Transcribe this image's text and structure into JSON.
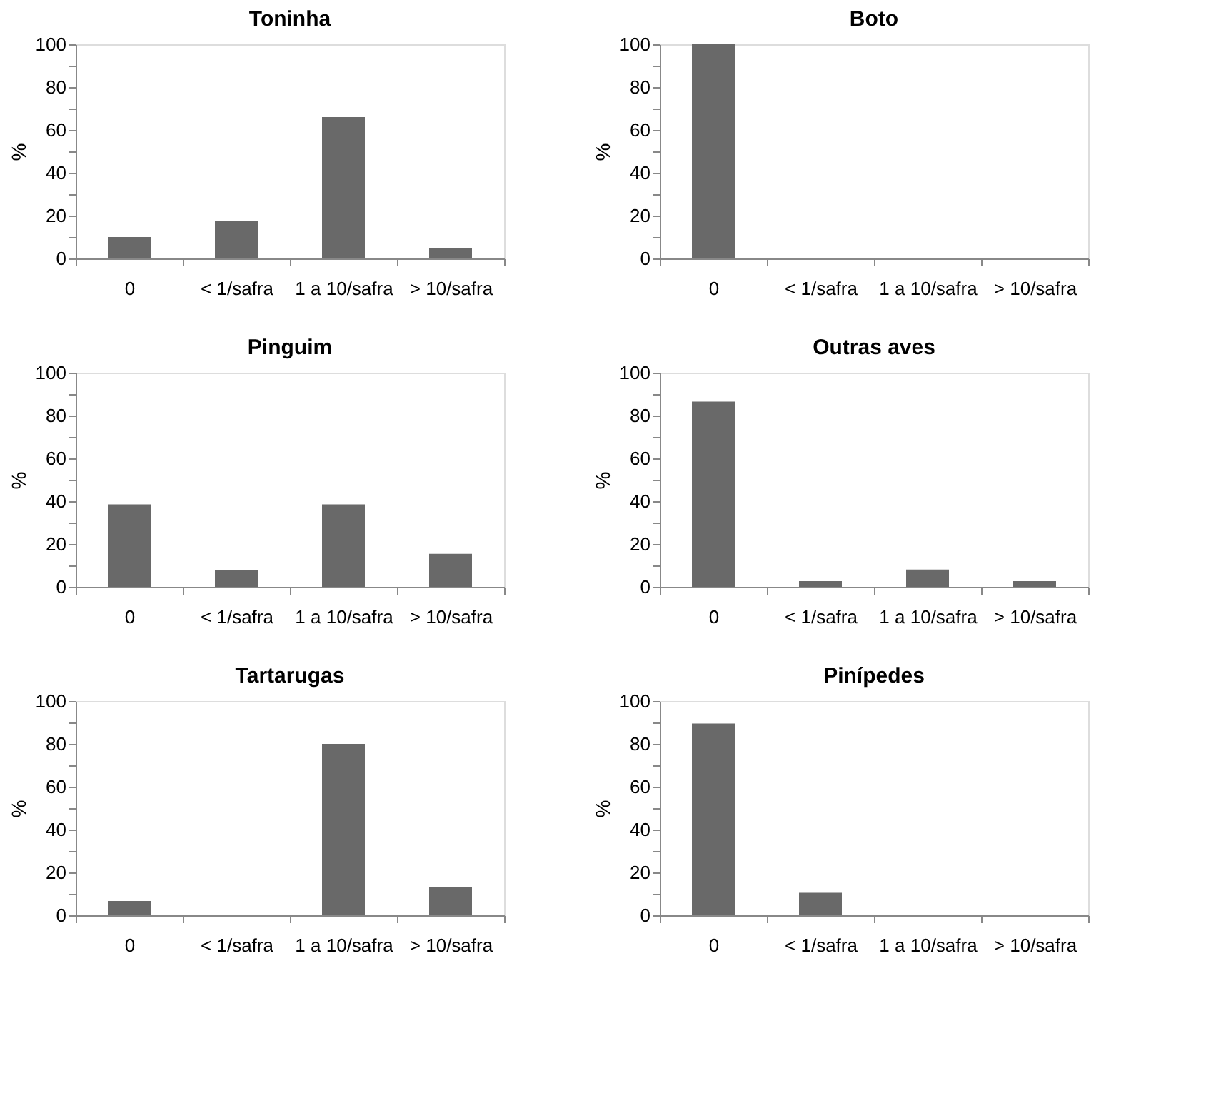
{
  "chart_data": [
    {
      "type": "bar",
      "title": "Toninha",
      "ylabel": "%",
      "categories": [
        "0",
        "< 1/safra",
        "1 a 10/safra",
        "> 10/safra"
      ],
      "values": [
        10,
        17.5,
        66,
        5
      ],
      "color": "#696969",
      "ylim": [
        0,
        100
      ],
      "yticks": [
        0,
        {
          "value": 10,
          "label": null
        },
        20,
        {
          "value": 30,
          "label": null
        },
        40,
        {
          "value": 50,
          "label": null
        },
        60,
        {
          "value": 70,
          "label": null
        },
        80,
        {
          "value": 90,
          "label": null
        },
        100
      ],
      "grid": false
    },
    {
      "type": "bar",
      "title": "Boto",
      "ylabel": "%",
      "categories": [
        "0",
        "< 1/safra",
        "1 a 10/safra",
        "> 10/safra"
      ],
      "values": [
        100,
        0,
        0,
        0
      ],
      "color": "#696969",
      "ylim": [
        0,
        100
      ],
      "yticks": [
        0,
        {
          "value": 10,
          "label": null
        },
        20,
        {
          "value": 30,
          "label": null
        },
        40,
        {
          "value": 50,
          "label": null
        },
        60,
        {
          "value": 70,
          "label": null
        },
        80,
        {
          "value": 90,
          "label": null
        },
        100
      ],
      "grid": false
    },
    {
      "type": "bar",
      "title": "Pinguim",
      "ylabel": "%",
      "categories": [
        "0",
        "< 1/safra",
        "1 a 10/safra",
        "> 10/safra"
      ],
      "values": [
        38.5,
        7.7,
        38.5,
        15.4
      ],
      "color": "#696969",
      "ylim": [
        0,
        100
      ],
      "yticks": [
        0,
        {
          "value": 10,
          "label": null
        },
        20,
        {
          "value": 30,
          "label": null
        },
        40,
        {
          "value": 50,
          "label": null
        },
        60,
        {
          "value": 70,
          "label": null
        },
        80,
        {
          "value": 90,
          "label": null
        },
        100
      ],
      "grid": false
    },
    {
      "type": "bar",
      "title": "Outras aves",
      "ylabel": "%",
      "categories": [
        "0",
        "< 1/safra",
        "1 a 10/safra",
        "> 10/safra"
      ],
      "values": [
        86.5,
        2.7,
        8.1,
        2.7
      ],
      "color": "#696969",
      "ylim": [
        0,
        100
      ],
      "yticks": [
        0,
        {
          "value": 10,
          "label": null
        },
        20,
        {
          "value": 30,
          "label": null
        },
        40,
        {
          "value": 50,
          "label": null
        },
        60,
        {
          "value": 70,
          "label": null
        },
        80,
        {
          "value": 90,
          "label": null
        },
        100
      ],
      "grid": false
    },
    {
      "type": "bar",
      "title": "Tartarugas",
      "ylabel": "%",
      "categories": [
        "0",
        "< 1/safra",
        "1 a 10/safra",
        "> 10/safra"
      ],
      "values": [
        6.7,
        0,
        80,
        13.3
      ],
      "color": "#696969",
      "ylim": [
        0,
        100
      ],
      "yticks": [
        0,
        {
          "value": 10,
          "label": null
        },
        20,
        {
          "value": 30,
          "label": null
        },
        40,
        {
          "value": 50,
          "label": null
        },
        60,
        {
          "value": 70,
          "label": null
        },
        80,
        {
          "value": 90,
          "label": null
        },
        100
      ],
      "grid": false
    },
    {
      "type": "bar",
      "title": "Pinípedes",
      "ylabel": "%",
      "categories": [
        "0",
        "< 1/safra",
        "1 a 10/safra",
        "> 10/safra"
      ],
      "values": [
        89.5,
        10.5,
        0,
        0
      ],
      "color": "#696969",
      "ylim": [
        0,
        100
      ],
      "yticks": [
        0,
        {
          "value": 10,
          "label": null
        },
        20,
        {
          "value": 30,
          "label": null
        },
        40,
        {
          "value": 50,
          "label": null
        },
        60,
        {
          "value": 70,
          "label": null
        },
        80,
        {
          "value": 90,
          "label": null
        },
        100
      ],
      "grid": false
    }
  ]
}
